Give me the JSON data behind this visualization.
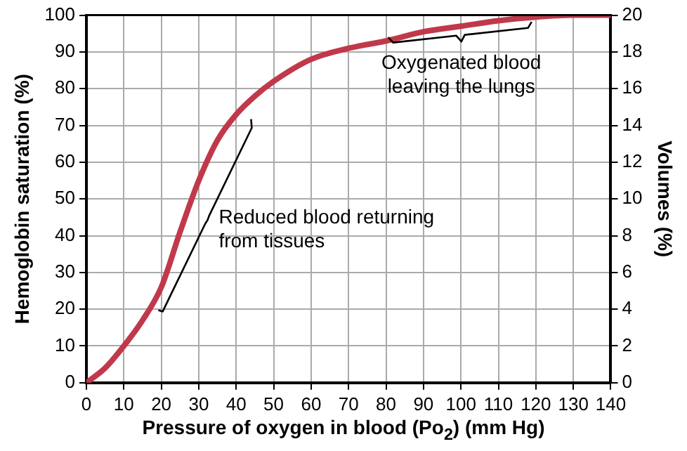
{
  "chart_data": {
    "type": "line",
    "xlabel": "Pressure of oxygen in blood (Po$_{2}$) (mm Hg)",
    "ylabel": "Hemoglobin saturation (%)",
    "y2label": "Volumes (%)",
    "x": [
      0,
      5,
      10,
      15,
      20,
      25,
      30,
      35,
      40,
      45,
      50,
      60,
      70,
      80,
      90,
      100,
      110,
      120,
      130,
      140
    ],
    "series": [
      {
        "color": "#c0394b",
        "values": [
          0,
          4,
          10,
          17,
          26,
          41,
          55,
          66,
          73,
          78,
          82,
          88,
          91,
          93,
          95.5,
          97,
          98.5,
          99.5,
          100,
          100
        ]
      }
    ],
    "xlim": [
      0,
      140
    ],
    "xticks": [
      0,
      10,
      20,
      30,
      40,
      50,
      60,
      70,
      80,
      90,
      100,
      110,
      120,
      130,
      140
    ],
    "ylim": [
      0,
      100
    ],
    "yticks": [
      0,
      10,
      20,
      30,
      40,
      50,
      60,
      70,
      80,
      90,
      100
    ],
    "y2lim": [
      0,
      20
    ],
    "y2ticks": [
      0,
      2,
      4,
      6,
      8,
      10,
      12,
      14,
      16,
      18,
      20
    ],
    "annotations": [
      "Reduced blood returning from tissues",
      "Oxygenated blood leaving the lungs"
    ],
    "grid": true,
    "legend": false,
    "marker": "none",
    "line_style": "solid"
  }
}
